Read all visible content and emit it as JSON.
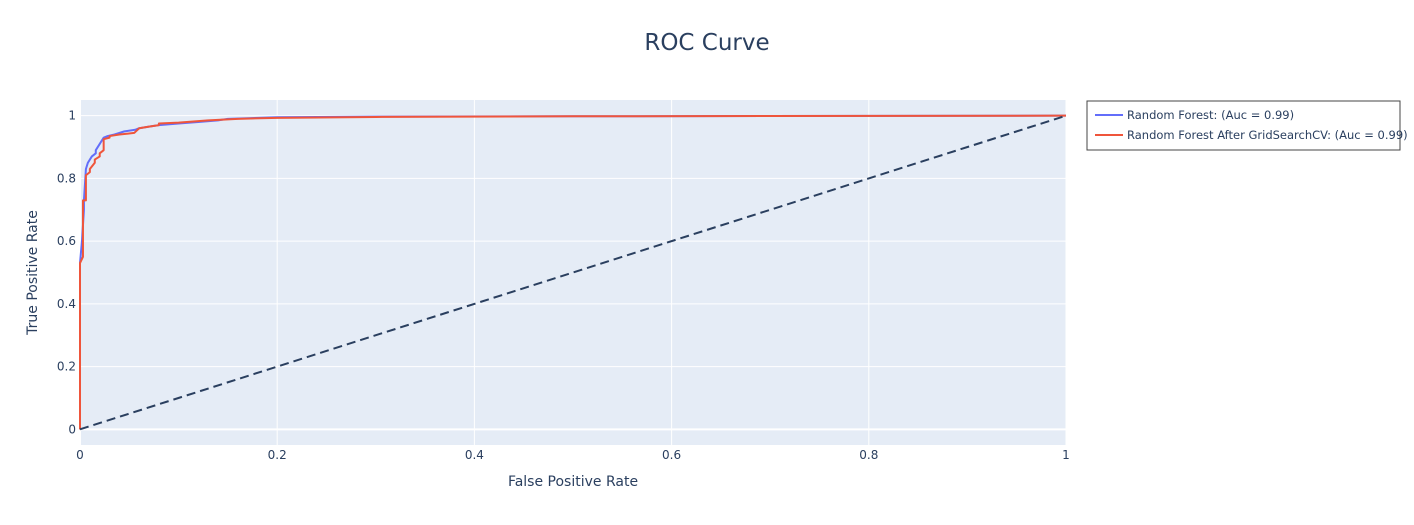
{
  "chart_data": {
    "type": "line",
    "title": "ROC Curve",
    "xlabel": "False Positive Rate",
    "ylabel": "True Positive Rate",
    "xlim": [
      0,
      1
    ],
    "ylim": [
      -0.05,
      1.05
    ],
    "x_ticks": [
      0,
      0.2,
      0.4,
      0.6,
      0.8,
      1
    ],
    "x_tick_labels": [
      "0",
      "0.2",
      "0.4",
      "0.6",
      "0.8",
      "1"
    ],
    "y_ticks": [
      0,
      0.2,
      0.4,
      0.6,
      0.8,
      1
    ],
    "y_tick_labels": [
      "0",
      "0.2",
      "0.4",
      "0.6",
      "0.8",
      "1"
    ],
    "grid": true,
    "legend_position": "outside-right-top",
    "plot_background": "#e5ecf6",
    "series": [
      {
        "name": "Random Forest: (Auc = 0.99)",
        "color": "#636efa",
        "x": [
          0,
          0,
          0.002,
          0.004,
          0.004,
          0.006,
          0.008,
          0.012,
          0.016,
          0.016,
          0.02,
          0.022,
          0.024,
          0.028,
          0.035,
          0.045,
          0.056,
          0.06,
          0.07,
          0.08,
          0.1,
          0.12,
          0.14,
          0.15,
          0.17,
          0.2,
          0.3,
          0.5,
          0.7,
          1
        ],
        "y": [
          0,
          0.53,
          0.6,
          0.7,
          0.73,
          0.83,
          0.85,
          0.87,
          0.88,
          0.89,
          0.91,
          0.92,
          0.93,
          0.935,
          0.94,
          0.95,
          0.955,
          0.96,
          0.965,
          0.97,
          0.975,
          0.98,
          0.985,
          0.99,
          0.992,
          0.995,
          0.997,
          0.998,
          0.999,
          1
        ]
      },
      {
        "name": "Random Forest After GridSearchCV: (Auc = 0.99)",
        "color": "#ef553b",
        "x": [
          0,
          0,
          0.003,
          0.003,
          0.006,
          0.006,
          0.01,
          0.01,
          0.015,
          0.015,
          0.02,
          0.02,
          0.024,
          0.024,
          0.03,
          0.03,
          0.04,
          0.055,
          0.06,
          0.07,
          0.08,
          0.08,
          0.1,
          0.13,
          0.16,
          0.2,
          0.3,
          0.5,
          0.7,
          1
        ],
        "y": [
          0,
          0.53,
          0.55,
          0.73,
          0.73,
          0.81,
          0.82,
          0.83,
          0.85,
          0.86,
          0.87,
          0.88,
          0.89,
          0.925,
          0.93,
          0.935,
          0.94,
          0.945,
          0.96,
          0.965,
          0.97,
          0.975,
          0.978,
          0.985,
          0.99,
          0.993,
          0.996,
          0.998,
          0.999,
          1
        ]
      },
      {
        "color": "#2a3f5f",
        "dashed": true,
        "x": [
          0,
          1
        ],
        "y": [
          0,
          1
        ]
      }
    ]
  }
}
